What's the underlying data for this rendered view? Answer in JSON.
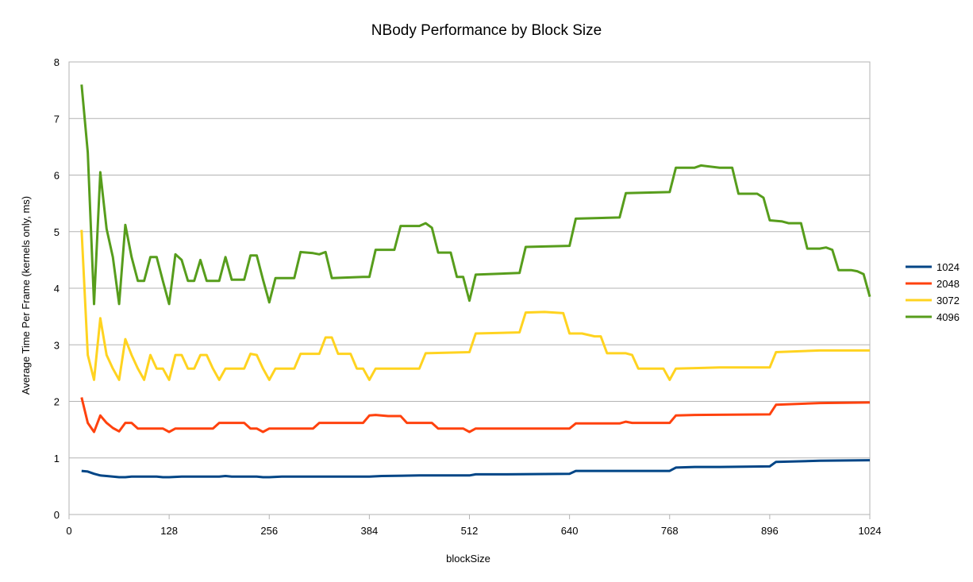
{
  "chart_data": {
    "type": "line",
    "title": "NBody Performance by Block Size",
    "xlabel": "blockSize",
    "ylabel": "Average Time Per Frame (kernels only, ms)",
    "xlim": [
      0,
      1024
    ],
    "ylim": [
      0,
      8
    ],
    "x_ticks": [
      0,
      128,
      256,
      384,
      512,
      640,
      768,
      896,
      1024
    ],
    "y_ticks": [
      0,
      1,
      2,
      3,
      4,
      5,
      6,
      7,
      8
    ],
    "grid": "horizontal",
    "legend_position": "right",
    "series": [
      {
        "name": "1024",
        "color": "#004586",
        "points": [
          [
            16,
            0.77
          ],
          [
            24,
            0.76
          ],
          [
            32,
            0.72
          ],
          [
            40,
            0.69
          ],
          [
            48,
            0.68
          ],
          [
            56,
            0.67
          ],
          [
            64,
            0.66
          ],
          [
            72,
            0.66
          ],
          [
            80,
            0.67
          ],
          [
            96,
            0.67
          ],
          [
            112,
            0.67
          ],
          [
            120,
            0.66
          ],
          [
            128,
            0.66
          ],
          [
            144,
            0.67
          ],
          [
            160,
            0.67
          ],
          [
            176,
            0.67
          ],
          [
            192,
            0.67
          ],
          [
            200,
            0.68
          ],
          [
            208,
            0.67
          ],
          [
            224,
            0.67
          ],
          [
            240,
            0.67
          ],
          [
            248,
            0.66
          ],
          [
            256,
            0.66
          ],
          [
            272,
            0.67
          ],
          [
            320,
            0.67
          ],
          [
            384,
            0.67
          ],
          [
            400,
            0.68
          ],
          [
            448,
            0.69
          ],
          [
            512,
            0.69
          ],
          [
            520,
            0.71
          ],
          [
            560,
            0.71
          ],
          [
            640,
            0.72
          ],
          [
            648,
            0.77
          ],
          [
            704,
            0.77
          ],
          [
            768,
            0.77
          ],
          [
            776,
            0.83
          ],
          [
            800,
            0.84
          ],
          [
            832,
            0.84
          ],
          [
            896,
            0.85
          ],
          [
            904,
            0.93
          ],
          [
            960,
            0.95
          ],
          [
            1024,
            0.96
          ]
        ]
      },
      {
        "name": "2048",
        "color": "#ff420e",
        "points": [
          [
            16,
            2.07
          ],
          [
            24,
            1.62
          ],
          [
            32,
            1.46
          ],
          [
            40,
            1.75
          ],
          [
            48,
            1.62
          ],
          [
            56,
            1.53
          ],
          [
            64,
            1.47
          ],
          [
            72,
            1.62
          ],
          [
            80,
            1.62
          ],
          [
            88,
            1.52
          ],
          [
            96,
            1.52
          ],
          [
            112,
            1.52
          ],
          [
            120,
            1.52
          ],
          [
            128,
            1.46
          ],
          [
            136,
            1.52
          ],
          [
            160,
            1.52
          ],
          [
            184,
            1.52
          ],
          [
            192,
            1.62
          ],
          [
            208,
            1.62
          ],
          [
            224,
            1.62
          ],
          [
            232,
            1.52
          ],
          [
            240,
            1.52
          ],
          [
            248,
            1.46
          ],
          [
            256,
            1.52
          ],
          [
            264,
            1.52
          ],
          [
            296,
            1.52
          ],
          [
            312,
            1.52
          ],
          [
            320,
            1.62
          ],
          [
            344,
            1.62
          ],
          [
            368,
            1.62
          ],
          [
            376,
            1.62
          ],
          [
            384,
            1.75
          ],
          [
            392,
            1.76
          ],
          [
            408,
            1.74
          ],
          [
            424,
            1.74
          ],
          [
            432,
            1.62
          ],
          [
            448,
            1.62
          ],
          [
            464,
            1.62
          ],
          [
            472,
            1.52
          ],
          [
            496,
            1.52
          ],
          [
            504,
            1.52
          ],
          [
            512,
            1.46
          ],
          [
            520,
            1.52
          ],
          [
            560,
            1.52
          ],
          [
            640,
            1.52
          ],
          [
            648,
            1.61
          ],
          [
            704,
            1.61
          ],
          [
            712,
            1.64
          ],
          [
            720,
            1.62
          ],
          [
            768,
            1.62
          ],
          [
            776,
            1.75
          ],
          [
            800,
            1.76
          ],
          [
            896,
            1.77
          ],
          [
            904,
            1.94
          ],
          [
            960,
            1.97
          ],
          [
            1024,
            1.98
          ]
        ]
      },
      {
        "name": "3072",
        "color": "#ffd320",
        "points": [
          [
            16,
            5.03
          ],
          [
            24,
            2.82
          ],
          [
            32,
            2.38
          ],
          [
            40,
            3.47
          ],
          [
            48,
            2.82
          ],
          [
            56,
            2.58
          ],
          [
            64,
            2.38
          ],
          [
            72,
            3.1
          ],
          [
            80,
            2.82
          ],
          [
            88,
            2.58
          ],
          [
            96,
            2.38
          ],
          [
            104,
            2.82
          ],
          [
            112,
            2.58
          ],
          [
            120,
            2.58
          ],
          [
            128,
            2.38
          ],
          [
            136,
            2.82
          ],
          [
            144,
            2.82
          ],
          [
            152,
            2.58
          ],
          [
            160,
            2.58
          ],
          [
            168,
            2.82
          ],
          [
            176,
            2.82
          ],
          [
            184,
            2.58
          ],
          [
            192,
            2.38
          ],
          [
            200,
            2.58
          ],
          [
            224,
            2.58
          ],
          [
            232,
            2.84
          ],
          [
            240,
            2.82
          ],
          [
            248,
            2.58
          ],
          [
            256,
            2.38
          ],
          [
            264,
            2.58
          ],
          [
            288,
            2.58
          ],
          [
            296,
            2.84
          ],
          [
            320,
            2.84
          ],
          [
            328,
            3.13
          ],
          [
            336,
            3.13
          ],
          [
            344,
            2.84
          ],
          [
            360,
            2.84
          ],
          [
            368,
            2.58
          ],
          [
            376,
            2.58
          ],
          [
            384,
            2.38
          ],
          [
            392,
            2.58
          ],
          [
            448,
            2.58
          ],
          [
            456,
            2.85
          ],
          [
            512,
            2.87
          ],
          [
            520,
            3.2
          ],
          [
            576,
            3.22
          ],
          [
            584,
            3.57
          ],
          [
            608,
            3.58
          ],
          [
            632,
            3.56
          ],
          [
            640,
            3.2
          ],
          [
            656,
            3.2
          ],
          [
            672,
            3.15
          ],
          [
            680,
            3.15
          ],
          [
            688,
            2.85
          ],
          [
            712,
            2.85
          ],
          [
            720,
            2.82
          ],
          [
            728,
            2.58
          ],
          [
            760,
            2.58
          ],
          [
            768,
            2.38
          ],
          [
            776,
            2.58
          ],
          [
            832,
            2.6
          ],
          [
            896,
            2.6
          ],
          [
            904,
            2.87
          ],
          [
            960,
            2.9
          ],
          [
            1024,
            2.9
          ]
        ]
      },
      {
        "name": "4096",
        "color": "#579d1c",
        "points": [
          [
            16,
            7.6
          ],
          [
            24,
            6.4
          ],
          [
            32,
            3.72
          ],
          [
            40,
            6.05
          ],
          [
            48,
            5.05
          ],
          [
            56,
            4.55
          ],
          [
            64,
            3.72
          ],
          [
            72,
            5.12
          ],
          [
            80,
            4.55
          ],
          [
            88,
            4.13
          ],
          [
            96,
            4.13
          ],
          [
            104,
            4.55
          ],
          [
            112,
            4.55
          ],
          [
            120,
            4.13
          ],
          [
            128,
            3.72
          ],
          [
            136,
            4.6
          ],
          [
            144,
            4.5
          ],
          [
            152,
            4.13
          ],
          [
            160,
            4.13
          ],
          [
            168,
            4.5
          ],
          [
            176,
            4.13
          ],
          [
            184,
            4.13
          ],
          [
            192,
            4.13
          ],
          [
            200,
            4.55
          ],
          [
            208,
            4.15
          ],
          [
            224,
            4.15
          ],
          [
            232,
            4.58
          ],
          [
            240,
            4.58
          ],
          [
            248,
            4.15
          ],
          [
            256,
            3.75
          ],
          [
            264,
            4.18
          ],
          [
            288,
            4.18
          ],
          [
            296,
            4.64
          ],
          [
            312,
            4.62
          ],
          [
            320,
            4.6
          ],
          [
            328,
            4.64
          ],
          [
            336,
            4.18
          ],
          [
            376,
            4.2
          ],
          [
            384,
            4.2
          ],
          [
            392,
            4.68
          ],
          [
            408,
            4.68
          ],
          [
            416,
            4.68
          ],
          [
            424,
            5.1
          ],
          [
            448,
            5.1
          ],
          [
            456,
            5.15
          ],
          [
            464,
            5.07
          ],
          [
            472,
            4.63
          ],
          [
            488,
            4.63
          ],
          [
            496,
            4.2
          ],
          [
            504,
            4.2
          ],
          [
            512,
            3.78
          ],
          [
            520,
            4.24
          ],
          [
            576,
            4.27
          ],
          [
            584,
            4.73
          ],
          [
            640,
            4.75
          ],
          [
            648,
            5.23
          ],
          [
            704,
            5.25
          ],
          [
            712,
            5.68
          ],
          [
            768,
            5.7
          ],
          [
            776,
            6.13
          ],
          [
            800,
            6.13
          ],
          [
            808,
            6.17
          ],
          [
            832,
            6.13
          ],
          [
            848,
            6.13
          ],
          [
            856,
            5.67
          ],
          [
            880,
            5.67
          ],
          [
            888,
            5.6
          ],
          [
            896,
            5.2
          ],
          [
            912,
            5.18
          ],
          [
            920,
            5.15
          ],
          [
            936,
            5.15
          ],
          [
            944,
            4.7
          ],
          [
            960,
            4.7
          ],
          [
            968,
            4.72
          ],
          [
            976,
            4.68
          ],
          [
            984,
            4.32
          ],
          [
            1000,
            4.32
          ],
          [
            1008,
            4.3
          ],
          [
            1016,
            4.25
          ],
          [
            1024,
            3.85
          ]
        ]
      }
    ]
  }
}
